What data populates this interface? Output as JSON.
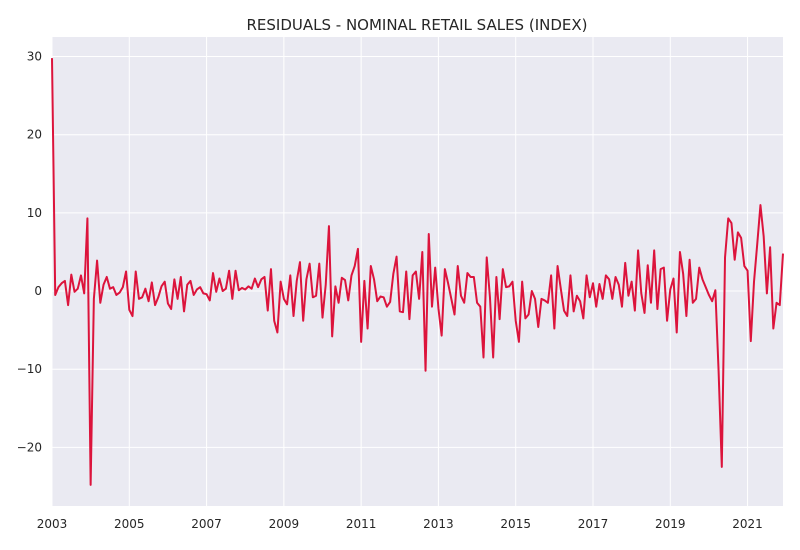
{
  "chart_data": {
    "type": "line",
    "title": "RESIDUALS - NOMINAL RETAIL SALES (INDEX)",
    "xlabel": "",
    "ylabel": "",
    "xlim": [
      2003.0,
      2021.917
    ],
    "ylim": [
      -27.5,
      32.5
    ],
    "x_ticks": [
      2003,
      2005,
      2007,
      2009,
      2011,
      2013,
      2015,
      2017,
      2019,
      2021
    ],
    "y_ticks": [
      -20,
      -10,
      0,
      10,
      20,
      30
    ],
    "y_tick_labels": [
      "−20",
      "−10",
      "0",
      "10",
      "20",
      "30"
    ],
    "grid": true,
    "background": "#eaeaf2",
    "line_color": "#dc143c",
    "series": [
      {
        "start_year": 2003,
        "start_month": 1,
        "frequency": "monthly",
        "values": [
          29.8,
          -0.5,
          0.5,
          1.0,
          1.3,
          -1.8,
          2.1,
          -0.1,
          0.3,
          2.0,
          -0.3,
          9.3,
          -24.8,
          -1.0,
          3.9,
          -1.5,
          0.8,
          1.8,
          0.3,
          0.5,
          -0.5,
          -0.2,
          0.5,
          2.5,
          -2.4,
          -3.2,
          2.5,
          -1.0,
          -0.8,
          0.3,
          -1.3,
          1.1,
          -1.8,
          -0.8,
          0.6,
          1.2,
          -1.6,
          -2.3,
          1.5,
          -1.0,
          1.8,
          -2.6,
          0.8,
          1.3,
          -0.5,
          0.2,
          0.5,
          -0.3,
          -0.4,
          -1.2,
          2.3,
          -0.1,
          1.6,
          0.0,
          0.3,
          2.6,
          -1.0,
          2.6,
          0.1,
          0.4,
          0.2,
          0.6,
          0.3,
          1.6,
          0.5,
          1.5,
          1.8,
          -2.5,
          2.8,
          -3.8,
          -5.3,
          1.2,
          -1.0,
          -1.7,
          2.0,
          -3.2,
          1.3,
          3.7,
          -3.8,
          1.5,
          3.5,
          -0.8,
          -0.6,
          3.5,
          -3.4,
          0.8,
          8.3,
          -5.8,
          0.6,
          -1.5,
          1.7,
          1.4,
          -1.2,
          2.0,
          3.2,
          5.4,
          -6.5,
          1.3,
          -4.8,
          3.2,
          1.5,
          -1.3,
          -0.7,
          -0.8,
          -2.0,
          -1.4,
          2.2,
          4.4,
          -2.6,
          -2.7,
          2.5,
          -3.6,
          2.0,
          2.5,
          -1.0,
          5.0,
          -10.2,
          7.3,
          -2.0,
          3.0,
          -2.2,
          -5.7,
          2.8,
          1.0,
          -1.0,
          -3.0,
          3.2,
          -0.6,
          -1.5,
          2.3,
          1.8,
          1.8,
          -1.5,
          -2.0,
          -8.5,
          4.3,
          -0.8,
          -8.5,
          1.8,
          -3.6,
          2.8,
          0.5,
          0.6,
          1.2,
          -3.8,
          -6.5,
          1.2,
          -3.5,
          -3.0,
          0.0,
          -1.0,
          -4.6,
          -1.0,
          -1.2,
          -1.5,
          2.0,
          -4.8,
          3.2,
          0.3,
          -2.5,
          -3.2,
          2.0,
          -2.6,
          -0.6,
          -1.3,
          -3.5,
          2.0,
          -0.8,
          1.0,
          -2.0,
          0.9,
          -1.0,
          2.0,
          1.5,
          -1.0,
          1.8,
          0.8,
          -2.0,
          3.6,
          -0.6,
          1.2,
          -2.5,
          5.2,
          -0.3,
          -2.8,
          3.3,
          -1.5,
          5.2,
          -2.3,
          2.8,
          3.0,
          -3.8,
          0.2,
          1.6,
          -5.3,
          5.0,
          2.2,
          -3.2,
          4.0,
          -1.5,
          -1.0,
          3.0,
          1.5,
          0.5,
          -0.5,
          -1.3,
          0.1,
          -10.2,
          -22.5,
          4.3,
          9.3,
          8.7,
          4.0,
          7.5,
          6.8,
          3.2,
          2.6,
          -6.4,
          1.2,
          6.0,
          11.0,
          7.0,
          -0.3,
          5.6,
          -4.8,
          -1.5,
          -1.8,
          4.8
        ]
      }
    ]
  }
}
